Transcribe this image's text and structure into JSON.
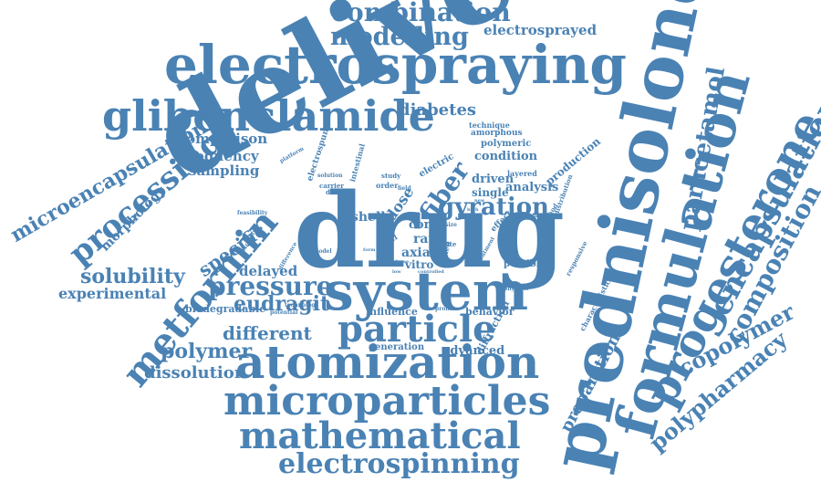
{
  "cloud": {
    "color": "#4a82b4",
    "words": [
      "delivery",
      "drug",
      "prednisolone",
      "electrospraying",
      "formulation",
      "system",
      "progesterone",
      "glibenclamide",
      "atomization",
      "particle",
      "microparticles",
      "mathematical",
      "metformin",
      "combination",
      "modelling",
      "encapsulation",
      "electrospinning",
      "composition",
      "processing",
      "microencapsulation",
      "polypharmacy",
      "paracetamol",
      "copolymer",
      "pressure",
      "fiber",
      "gyration",
      "solubility",
      "eudragit",
      "different",
      "polymer",
      "dissolution",
      "experimental",
      "specific",
      "preparation",
      "electrosprayed",
      "diabetes",
      "comparison",
      "frequency",
      "sampling",
      "delayed",
      "morphology",
      "advanced",
      "shell",
      "dose",
      "rate",
      "core",
      "axial",
      "vitro",
      "condition",
      "driven",
      "single",
      "analysis",
      "polymeric",
      "amorphous",
      "technique",
      "production",
      "biodegradable",
      "influence",
      "behavior",
      "generation",
      "possible",
      "diffraction",
      "electric",
      "layered",
      "electrospun",
      "intestinal",
      "double",
      "carrier",
      "solution",
      "order",
      "study",
      "oral",
      "fixed",
      "site",
      "effect",
      "method",
      "diameter",
      "characteristic",
      "responsive",
      "distribution",
      "treatment",
      "physical",
      "profile",
      "technology",
      "potential",
      "difference",
      "successful",
      "model",
      "feasibility",
      "platform",
      "field",
      "size",
      "low",
      "target",
      "release",
      "controlled",
      "form",
      "high",
      "new"
    ]
  }
}
